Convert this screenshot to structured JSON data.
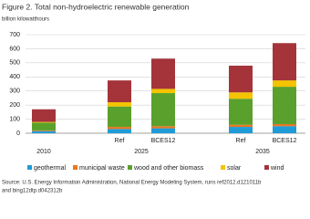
{
  "chart_data": {
    "type": "stacked-bar",
    "title": "Figure 2.  Total non-hydroelectric renewable generation",
    "ylabel": "billion kilowatthours",
    "groups": [
      {
        "label": "2010",
        "categories": [
          null
        ]
      },
      {
        "label": "2025",
        "categories": [
          "Ref",
          "BCES12"
        ]
      },
      {
        "label": "2035",
        "categories": [
          "Ref",
          "BCES12"
        ]
      }
    ],
    "series": [
      {
        "name": "geothermal",
        "color": "#1f9bd7",
        "values": [
          15,
          30,
          35,
          45,
          50
        ]
      },
      {
        "name": "municipal waste",
        "color": "#e87722",
        "values": [
          5,
          15,
          15,
          15,
          15
        ]
      },
      {
        "name": "wood and other biomass",
        "color": "#5aa02c",
        "values": [
          55,
          145,
          235,
          185,
          265
        ]
      },
      {
        "name": "solar",
        "color": "#f5c400",
        "values": [
          5,
          30,
          30,
          45,
          45
        ]
      },
      {
        "name": "wind",
        "color": "#a4343a",
        "values": [
          90,
          155,
          215,
          190,
          265
        ]
      }
    ],
    "ylim": [
      0,
      700
    ],
    "yticks": [
      0,
      100,
      200,
      300,
      400,
      500,
      600,
      700
    ],
    "grid": true,
    "legend": "bottom",
    "source": [
      "Source: U.S. Energy Information Administration, National Energy Modeling System, runs ref2012.d121011b",
      "and bing12dtp.d042312b"
    ]
  }
}
